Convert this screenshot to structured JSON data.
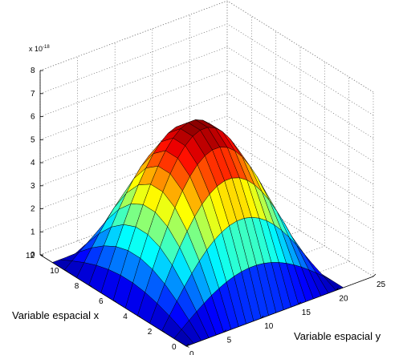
{
  "chart_data": {
    "type": "surface",
    "title": "",
    "xlabel": "Variable espacial x",
    "ylabel": "Variable espacial y",
    "zlabel": "",
    "x_range": [
      0,
      12
    ],
    "y_range": [
      0,
      25
    ],
    "z_range": [
      0,
      8
    ],
    "z_exponent_label": "x 10",
    "z_exponent_power": "-18",
    "x_ticks": [
      "0",
      "2",
      "4",
      "6",
      "8",
      "10",
      "12"
    ],
    "y_ticks": [
      "0",
      "5",
      "10",
      "15",
      "20",
      "25"
    ],
    "z_ticks": [
      "0",
      "1",
      "2",
      "3",
      "4",
      "5",
      "6",
      "7",
      "8"
    ],
    "surface": {
      "function": "z = A * sin(pi*x/Lx) * sin(pi*y/Ly)",
      "A": 6.6,
      "Lx": 11,
      "Ly": 21,
      "x_grid": [
        0,
        1,
        2,
        3,
        4,
        5,
        6,
        7,
        8,
        9,
        10,
        11
      ],
      "y_grid": [
        0,
        1,
        2,
        3,
        4,
        5,
        6,
        7,
        8,
        9,
        10,
        11,
        12,
        13,
        14,
        15,
        16,
        17,
        18,
        19,
        20,
        21
      ]
    },
    "colormap": "jet",
    "grid": true
  }
}
